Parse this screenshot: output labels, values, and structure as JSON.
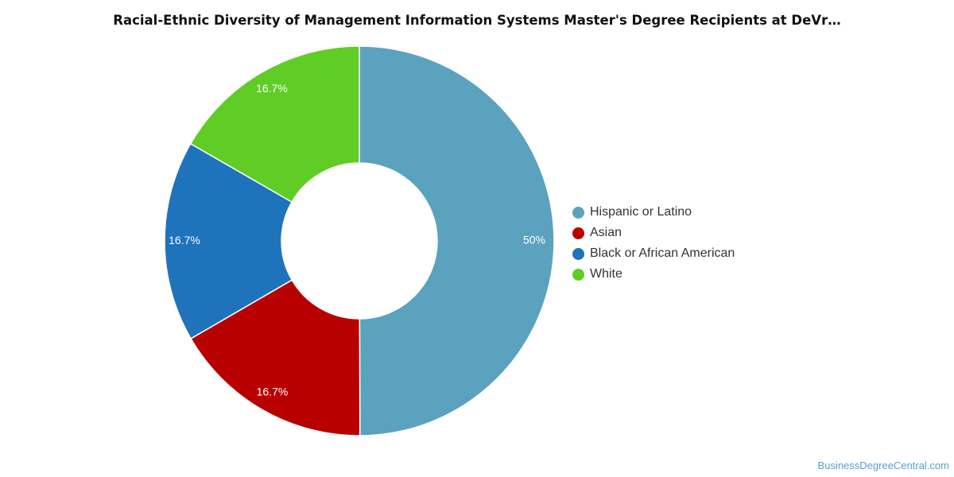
{
  "chart_data": {
    "type": "pie",
    "variant": "donut",
    "title": "Racial-Ethnic Diversity of Management Information Systems Master's Degree Recipients at DeVr…",
    "slices": [
      {
        "label": "Hispanic or Latino",
        "value": 50,
        "value_label": "50%",
        "color": "#5ba2bf"
      },
      {
        "label": "Asian",
        "value": 16.7,
        "value_label": "16.7%",
        "color": "#b80000"
      },
      {
        "label": "Black or African American",
        "value": 16.7,
        "value_label": "16.7%",
        "color": "#1f73bb"
      },
      {
        "label": "White",
        "value": 16.7,
        "value_label": "16.7%",
        "color": "#5fcd26"
      }
    ],
    "legend_position": "right"
  },
  "watermark": "BusinessDegreeCentral.com"
}
